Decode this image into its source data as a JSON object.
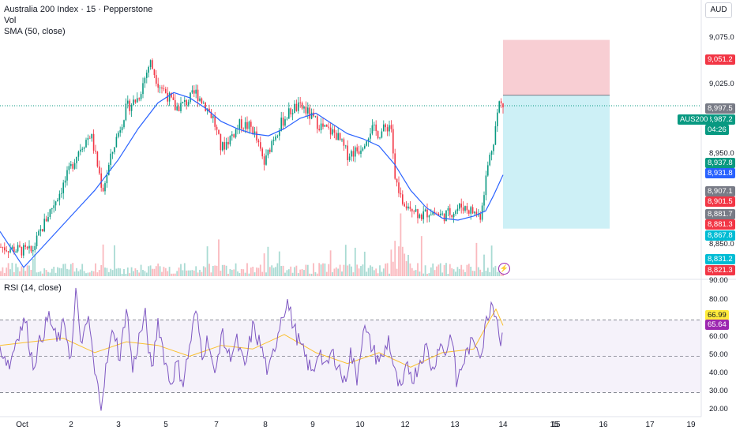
{
  "header": {
    "title": "Australia 200 Index · 15 · Pepperstone",
    "vol": "Vol",
    "sma": "SMA (50, close)",
    "currency": "AUD",
    "symbol_tag": "AUS200",
    "countdown": "04:26"
  },
  "rsi_label": "RSI (14, close)",
  "price_axis": [
    "9,075.0",
    "9,025.0",
    "8,950.0",
    "8,850.0"
  ],
  "rsi_axis": [
    "90.00",
    "80.00",
    "60.00",
    "50.00",
    "40.00",
    "30.00",
    "20.00"
  ],
  "price_tags": [
    {
      "text": "9,051.2",
      "color": "#f23645"
    },
    {
      "text": "8,997.5",
      "color": "#787b86"
    },
    {
      "text": "8,987.2",
      "color": "#089981"
    },
    {
      "text": "8,937.8",
      "color": "#089981"
    },
    {
      "text": "8,931.8",
      "color": "#2962ff"
    },
    {
      "text": "8,907.1",
      "color": "#787b86"
    },
    {
      "text": "8,901.5",
      "color": "#f23645"
    },
    {
      "text": "8,881.7",
      "color": "#787b86"
    },
    {
      "text": "8,881.3",
      "color": "#f23645"
    },
    {
      "text": "8,867.8",
      "color": "#00bcd4"
    },
    {
      "text": "8,831.2",
      "color": "#00bcd4"
    },
    {
      "text": "8,821.3",
      "color": "#f23645"
    }
  ],
  "rsi_tags": [
    {
      "text": "66.99",
      "color": "#ffeb3b",
      "fg": "#131722"
    },
    {
      "text": "65.64",
      "color": "#9c27b0",
      "fg": "#ffffff"
    }
  ],
  "time_axis": [
    "Oct",
    "2",
    "3",
    "5",
    "7",
    "8",
    "9",
    "10",
    "12",
    "13",
    "14",
    "15",
    "16",
    "17",
    "19",
    "2"
  ],
  "colors": {
    "up": "#089981",
    "down": "#f23645",
    "sma": "#2962ff",
    "rsi": "#7e57c2",
    "rsi_ma": "#fbc02d",
    "stop_zone": "#f7c5cb",
    "target_zone": "#c8eef5"
  },
  "chart_data": {
    "type": "candlestick",
    "y_range": [
      8820,
      9090
    ],
    "last_price": 8987.2,
    "entry": 8997.5,
    "stop": 9051.2,
    "target": 8867.8,
    "close_path": [
      [
        0,
        8850
      ],
      [
        40,
        8845
      ],
      [
        60,
        8880
      ],
      [
        80,
        8910
      ],
      [
        100,
        8945
      ],
      [
        115,
        8960
      ],
      [
        130,
        8905
      ],
      [
        145,
        8950
      ],
      [
        160,
        8985
      ],
      [
        175,
        8995
      ],
      [
        190,
        9030
      ],
      [
        200,
        9010
      ],
      [
        210,
        9000
      ],
      [
        222,
        8985
      ],
      [
        235,
        8990
      ],
      [
        248,
        9000
      ],
      [
        258,
        8990
      ],
      [
        270,
        8975
      ],
      [
        280,
        8945
      ],
      [
        295,
        8960
      ],
      [
        305,
        8970
      ],
      [
        320,
        8965
      ],
      [
        335,
        8930
      ],
      [
        345,
        8955
      ],
      [
        360,
        8975
      ],
      [
        372,
        8985
      ],
      [
        385,
        8985
      ],
      [
        395,
        8975
      ],
      [
        410,
        8965
      ],
      [
        425,
        8960
      ],
      [
        440,
        8940
      ],
      [
        455,
        8945
      ],
      [
        470,
        8965
      ],
      [
        480,
        8960
      ],
      [
        495,
        8970
      ],
      [
        500,
        8915
      ],
      [
        510,
        8895
      ],
      [
        522,
        8890
      ],
      [
        532,
        8880
      ],
      [
        545,
        8885
      ],
      [
        560,
        8880
      ],
      [
        575,
        8885
      ],
      [
        585,
        8890
      ],
      [
        597,
        8885
      ],
      [
        608,
        8880
      ],
      [
        618,
        8930
      ],
      [
        625,
        8955
      ],
      [
        632,
        8990
      ],
      [
        637,
        8987
      ]
    ],
    "sma_path": [
      [
        0,
        8865
      ],
      [
        30,
        8830
      ],
      [
        60,
        8855
      ],
      [
        90,
        8880
      ],
      [
        120,
        8905
      ],
      [
        150,
        8935
      ],
      [
        175,
        8965
      ],
      [
        200,
        8990
      ],
      [
        220,
        9000
      ],
      [
        240,
        8995
      ],
      [
        260,
        8985
      ],
      [
        280,
        8972
      ],
      [
        300,
        8965
      ],
      [
        320,
        8960
      ],
      [
        340,
        8958
      ],
      [
        360,
        8965
      ],
      [
        380,
        8975
      ],
      [
        400,
        8980
      ],
      [
        420,
        8970
      ],
      [
        440,
        8960
      ],
      [
        460,
        8955
      ],
      [
        480,
        8948
      ],
      [
        500,
        8930
      ],
      [
        520,
        8905
      ],
      [
        540,
        8888
      ],
      [
        560,
        8878
      ],
      [
        580,
        8876
      ],
      [
        600,
        8880
      ],
      [
        615,
        8885
      ],
      [
        625,
        8900
      ],
      [
        637,
        8920
      ]
    ],
    "rsi_path": [
      [
        0,
        55
      ],
      [
        12,
        45
      ],
      [
        22,
        62
      ],
      [
        32,
        70
      ],
      [
        42,
        45
      ],
      [
        52,
        60
      ],
      [
        62,
        72
      ],
      [
        72,
        58
      ],
      [
        82,
        68
      ],
      [
        90,
        48
      ],
      [
        96,
        84
      ],
      [
        104,
        55
      ],
      [
        112,
        72
      ],
      [
        120,
        40
      ],
      [
        128,
        25
      ],
      [
        136,
        48
      ],
      [
        144,
        66
      ],
      [
        152,
        48
      ],
      [
        160,
        78
      ],
      [
        168,
        42
      ],
      [
        176,
        60
      ],
      [
        184,
        72
      ],
      [
        192,
        40
      ],
      [
        200,
        70
      ],
      [
        208,
        50
      ],
      [
        216,
        35
      ],
      [
        224,
        46
      ],
      [
        232,
        36
      ],
      [
        240,
        55
      ],
      [
        248,
        75
      ],
      [
        256,
        52
      ],
      [
        264,
        60
      ],
      [
        272,
        37
      ],
      [
        280,
        63
      ],
      [
        290,
        50
      ],
      [
        300,
        58
      ],
      [
        310,
        43
      ],
      [
        320,
        66
      ],
      [
        330,
        56
      ],
      [
        340,
        40
      ],
      [
        348,
        55
      ],
      [
        356,
        72
      ],
      [
        364,
        80
      ],
      [
        372,
        66
      ],
      [
        380,
        56
      ],
      [
        388,
        48
      ],
      [
        396,
        40
      ],
      [
        404,
        55
      ],
      [
        412,
        42
      ],
      [
        420,
        52
      ],
      [
        428,
        46
      ],
      [
        436,
        35
      ],
      [
        444,
        52
      ],
      [
        452,
        38
      ],
      [
        460,
        66
      ],
      [
        468,
        58
      ],
      [
        476,
        50
      ],
      [
        484,
        48
      ],
      [
        492,
        60
      ],
      [
        500,
        40
      ],
      [
        508,
        30
      ],
      [
        516,
        45
      ],
      [
        524,
        38
      ],
      [
        532,
        48
      ],
      [
        540,
        55
      ],
      [
        548,
        42
      ],
      [
        556,
        57
      ],
      [
        564,
        52
      ],
      [
        572,
        63
      ],
      [
        578,
        35
      ],
      [
        586,
        46
      ],
      [
        594,
        55
      ],
      [
        602,
        58
      ],
      [
        610,
        52
      ],
      [
        616,
        70
      ],
      [
        622,
        80
      ],
      [
        628,
        75
      ],
      [
        634,
        58
      ],
      [
        637,
        65.6
      ]
    ],
    "rsi_ma_path": [
      [
        0,
        56
      ],
      [
        40,
        58
      ],
      [
        80,
        60
      ],
      [
        120,
        52
      ],
      [
        160,
        58
      ],
      [
        200,
        56
      ],
      [
        240,
        50
      ],
      [
        280,
        56
      ],
      [
        320,
        54
      ],
      [
        360,
        62
      ],
      [
        400,
        52
      ],
      [
        440,
        46
      ],
      [
        480,
        52
      ],
      [
        520,
        44
      ],
      [
        560,
        52
      ],
      [
        600,
        54
      ],
      [
        620,
        70
      ],
      [
        628,
        76
      ],
      [
        637,
        67
      ]
    ],
    "rsi_levels": [
      70,
      50,
      30
    ],
    "rsi_range": [
      18,
      92
    ]
  }
}
